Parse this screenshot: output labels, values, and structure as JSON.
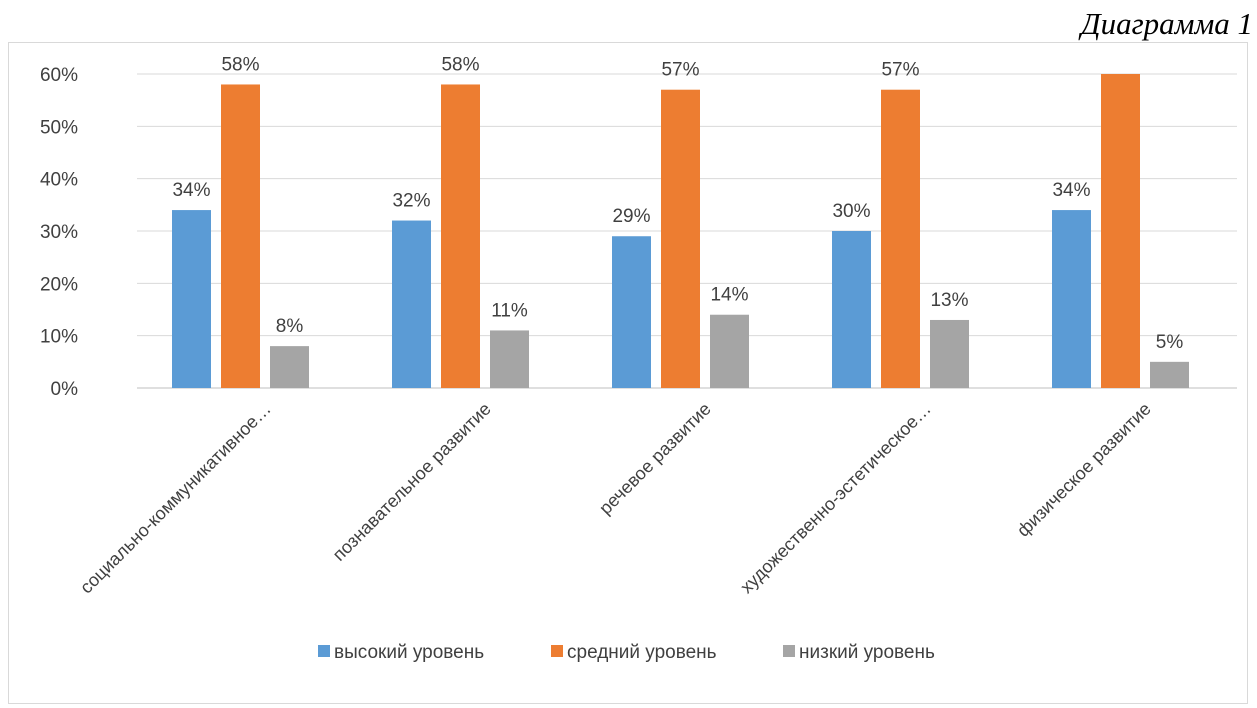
{
  "caption": "Диаграмма 1",
  "chart_data": {
    "type": "bar",
    "title": "",
    "xlabel": "",
    "ylabel": "",
    "ylim": [
      0,
      0.6
    ],
    "yticks": [
      "0%",
      "10%",
      "20%",
      "30%",
      "40%",
      "50%",
      "60%"
    ],
    "grid": true,
    "legend_position": "bottom",
    "categories": [
      "социально-коммуникативное…",
      "познавательное развитие",
      "речевое развитие",
      "художественно-эстетическое…",
      "физическое развитие"
    ],
    "series": [
      {
        "name": "высокий уровень",
        "color": "#5b9bd5",
        "values": [
          0.34,
          0.32,
          0.29,
          0.3,
          0.34
        ],
        "labels": [
          "34%",
          "32%",
          "29%",
          "30%",
          "34%"
        ]
      },
      {
        "name": "средний уровень",
        "color": "#ed7d31",
        "values": [
          0.58,
          0.58,
          0.57,
          0.57,
          0.6
        ],
        "labels": [
          "58%",
          "58%",
          "57%",
          "57%",
          ""
        ]
      },
      {
        "name": "низкий уровень",
        "color": "#a5a5a5",
        "values": [
          0.08,
          0.11,
          0.14,
          0.13,
          0.05
        ],
        "labels": [
          "8%",
          "11%",
          "14%",
          "13%",
          "5%"
        ]
      }
    ]
  }
}
